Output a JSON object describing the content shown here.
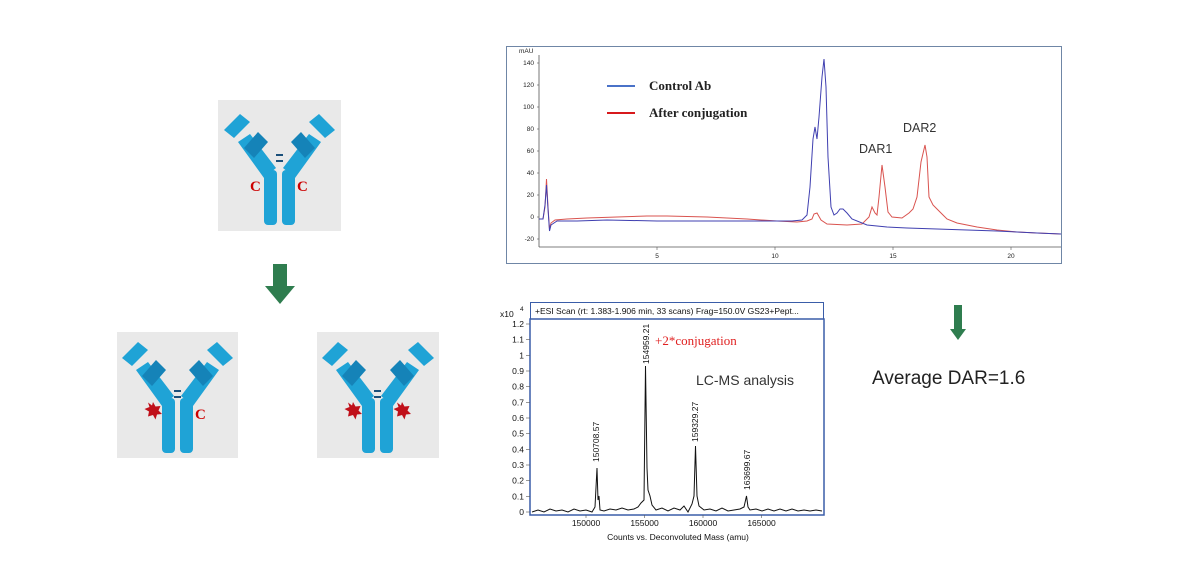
{
  "antibodies": {
    "top": {
      "left_label": "C",
      "right_label": "C"
    },
    "bottom_left": {
      "right_label": "C"
    }
  },
  "colors": {
    "antibody": "#1fa3d6",
    "antibody_dark": "#1583b8",
    "label_red": "#cc0000",
    "star": "#c0101a",
    "arrow_green": "#2f7d4f",
    "control_line": "#3f3fb0",
    "conjugation_line": "#d9534f",
    "frame_blue": "#3a5da8"
  },
  "hplc": {
    "y_unit": "mAU",
    "y_ticks": [
      "140",
      "120",
      "100",
      "80",
      "60",
      "40",
      "20",
      "0",
      "-20"
    ],
    "x_ticks": [
      "5",
      "10",
      "15",
      "20"
    ],
    "legend": [
      {
        "label": "Control Ab",
        "color": "#4a72c8"
      },
      {
        "label": "After conjugation",
        "color": "#d7191c"
      }
    ],
    "peak_labels": {
      "dar1": "DAR1",
      "dar2": "DAR2"
    }
  },
  "ms": {
    "header": "+ESI Scan (rt: 1.383-1.906 min, 33 scans) Frag=150.0V GS23+Pept...",
    "y_multiplier": "x10",
    "y_exponent": "4",
    "y_ticks": [
      "1.2",
      "1.1",
      "1",
      "0.9",
      "0.8",
      "0.7",
      "0.6",
      "0.5",
      "0.4",
      "0.3",
      "0.2",
      "0.1",
      "0"
    ],
    "x_ticks": [
      "150000",
      "155000",
      "160000",
      "165000"
    ],
    "x_label": "Counts vs. Deconvoluted Mass (amu)",
    "peaks": [
      {
        "label": "150708.57"
      },
      {
        "label": "154959.21"
      },
      {
        "label": "159329.27"
      },
      {
        "label": "163699.67"
      }
    ],
    "annotation": "+2*conjugation",
    "method": "LC-MS analysis"
  },
  "result": "Average DAR=1.6"
}
